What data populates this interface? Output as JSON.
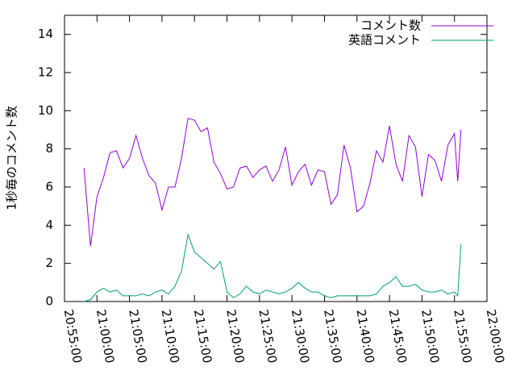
{
  "chart_data": {
    "type": "line",
    "y_label": "1秒毎のコメント数",
    "x": [
      "20:58:00",
      "20:59:00",
      "21:00:00",
      "21:01:00",
      "21:02:00",
      "21:03:00",
      "21:04:00",
      "21:05:00",
      "21:06:00",
      "21:07:00",
      "21:08:00",
      "21:09:00",
      "21:10:00",
      "21:11:00",
      "21:12:00",
      "21:13:00",
      "21:14:00",
      "21:15:00",
      "21:16:00",
      "21:17:00",
      "21:18:00",
      "21:19:00",
      "21:20:00",
      "21:21:00",
      "21:22:00",
      "21:23:00",
      "21:24:00",
      "21:25:00",
      "21:26:00",
      "21:27:00",
      "21:28:00",
      "21:29:00",
      "21:30:00",
      "21:31:00",
      "21:32:00",
      "21:33:00",
      "21:34:00",
      "21:35:00",
      "21:36:00",
      "21:37:00",
      "21:38:00",
      "21:39:00",
      "21:40:00",
      "21:41:00",
      "21:42:00",
      "21:43:00",
      "21:44:00",
      "21:45:00",
      "21:46:00",
      "21:47:00",
      "21:48:00",
      "21:49:00",
      "21:50:00",
      "21:51:00",
      "21:52:00",
      "21:53:00",
      "21:54:00",
      "21:55:00",
      "21:55:30",
      "21:56:00"
    ],
    "series": [
      {
        "name": "コメント数",
        "color": "#9400d3",
        "values": [
          7.0,
          2.9,
          5.5,
          6.5,
          7.8,
          7.9,
          7.0,
          7.5,
          8.7,
          7.5,
          6.6,
          6.2,
          4.8,
          6.0,
          6.0,
          7.5,
          9.6,
          9.5,
          8.9,
          9.1,
          7.3,
          6.7,
          5.9,
          6.0,
          7.0,
          7.1,
          6.5,
          6.9,
          7.1,
          6.3,
          6.9,
          8.1,
          6.1,
          6.8,
          7.2,
          6.1,
          6.9,
          6.8,
          5.1,
          5.6,
          8.2,
          7.0,
          4.7,
          5.0,
          6.2,
          7.9,
          7.3,
          9.2,
          7.2,
          6.3,
          8.7,
          8.1,
          5.5,
          7.7,
          7.4,
          6.3,
          8.2,
          8.8,
          6.3,
          9.0
        ]
      },
      {
        "name": "英語コメント",
        "color": "#009e73",
        "values": [
          0,
          0.1,
          0.5,
          0.7,
          0.5,
          0.6,
          0.3,
          0.3,
          0.3,
          0.4,
          0.3,
          0.5,
          0.6,
          0.4,
          0.8,
          1.6,
          3.5,
          2.6,
          2.3,
          2.0,
          1.7,
          2.1,
          0.5,
          0.2,
          0.4,
          0.8,
          0.5,
          0.4,
          0.6,
          0.5,
          0.4,
          0.5,
          0.7,
          1.0,
          0.7,
          0.5,
          0.5,
          0.3,
          0.2,
          0.3,
          0.3,
          0.3,
          0.3,
          0.3,
          0.3,
          0.4,
          0.8,
          1.0,
          1.3,
          0.8,
          0.8,
          0.9,
          0.6,
          0.5,
          0.5,
          0.6,
          0.4,
          0.5,
          0.3,
          3.0
        ]
      }
    ],
    "xlim": [
      "20:55:00",
      "22:00:00"
    ],
    "xticks": [
      "20:55:00",
      "21:00:00",
      "21:05:00",
      "21:10:00",
      "21:15:00",
      "21:20:00",
      "21:25:00",
      "21:30:00",
      "21:35:00",
      "21:40:00",
      "21:45:00",
      "21:50:00",
      "21:55:00",
      "22:00:00"
    ],
    "ylim": [
      0,
      15
    ],
    "yticks": [
      0,
      2,
      4,
      6,
      8,
      10,
      12,
      14
    ],
    "grid": false,
    "legend": "top-right"
  }
}
